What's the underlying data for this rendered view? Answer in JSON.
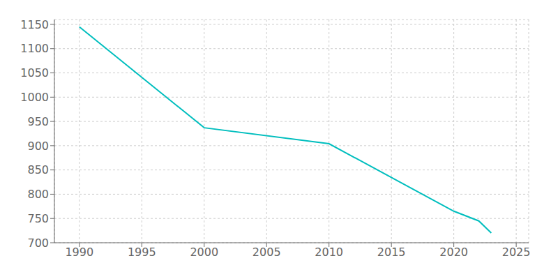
{
  "chart_data": {
    "type": "line",
    "x": [
      1990,
      2000,
      2010,
      2020,
      2022,
      2023
    ],
    "values": [
      1145,
      937,
      904,
      765,
      745,
      720
    ],
    "color": "#00BEBE",
    "xlim": [
      1988,
      2026
    ],
    "ylim": [
      700,
      1160
    ],
    "xticks": [
      1990,
      1995,
      2000,
      2005,
      2010,
      2015,
      2020,
      2025
    ],
    "yticks": [
      700,
      750,
      800,
      850,
      900,
      950,
      1000,
      1050,
      1100,
      1150
    ],
    "grid": true
  }
}
